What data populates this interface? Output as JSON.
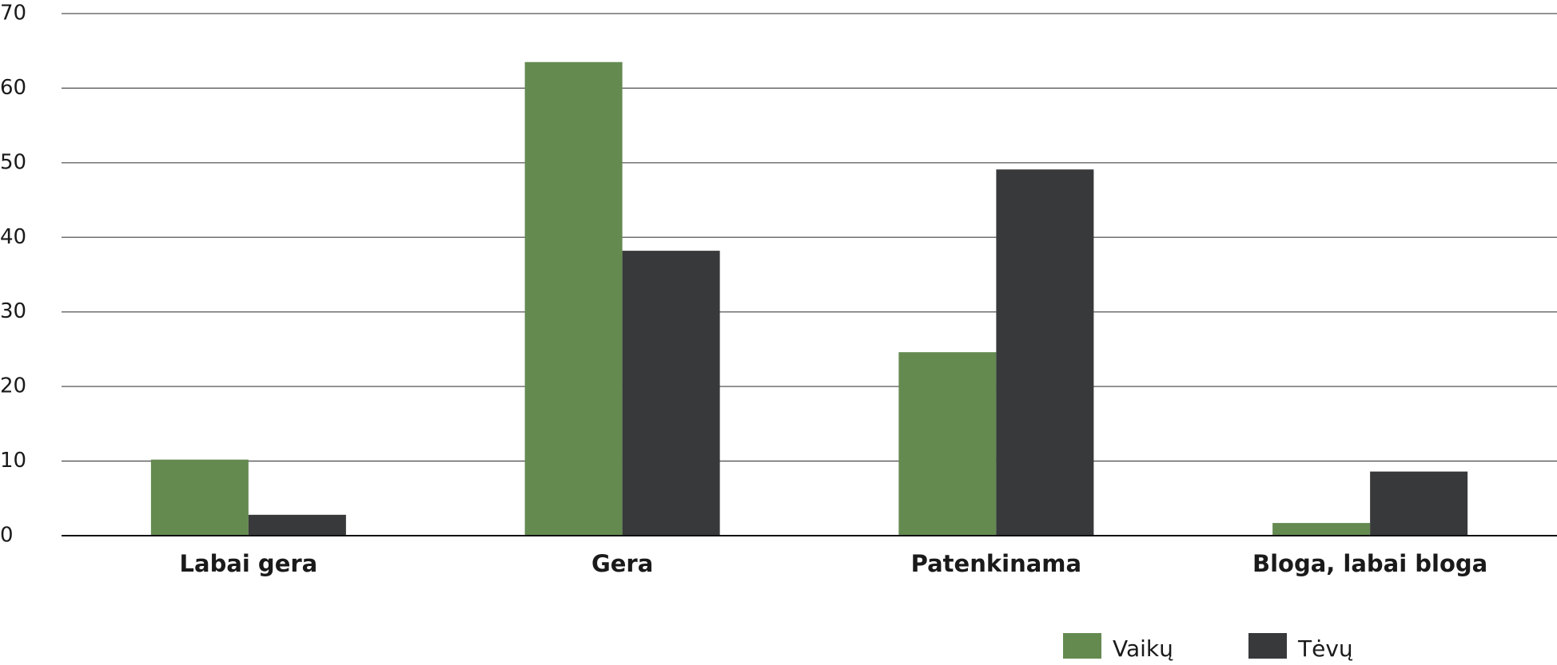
{
  "chart_data": {
    "type": "bar",
    "categories": [
      "Labai gera",
      "Gera",
      "Patenkinama",
      "Bloga, labai bloga"
    ],
    "series": [
      {
        "name": "Vaikų",
        "color": "#648a50",
        "values": [
          10.2,
          63.5,
          24.6,
          1.7
        ]
      },
      {
        "name": "Tėvų",
        "color": "#38393b",
        "values": [
          2.8,
          38.2,
          49.1,
          8.6
        ]
      }
    ],
    "ylim": [
      0,
      70
    ],
    "yticks": [
      0,
      10,
      20,
      30,
      40,
      50,
      60,
      70
    ],
    "grid": true
  }
}
